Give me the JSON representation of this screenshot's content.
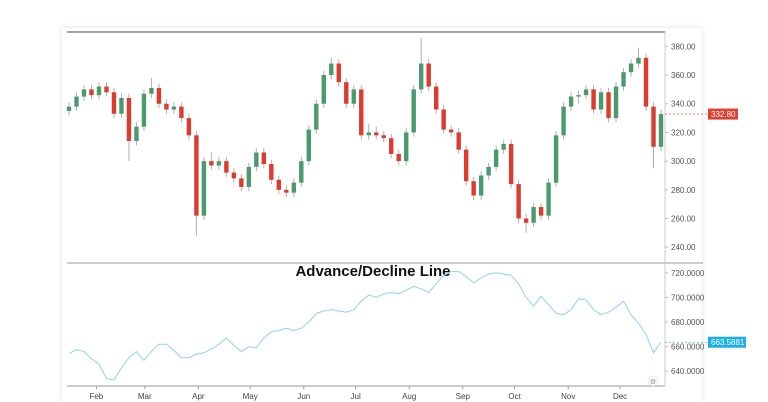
{
  "chart_data": [
    {
      "type": "candlestick",
      "title": "",
      "date_range": [
        "01-15",
        "12-27"
      ],
      "ylim": [
        229,
        390
      ],
      "yticks": [
        "380.00",
        "360.00",
        "340.00",
        "320.00",
        "300.00",
        "280.00",
        "260.00",
        "240.00"
      ],
      "ytick_values": [
        380,
        360,
        340,
        320,
        300,
        280,
        260,
        240
      ],
      "last_price_label": "332.80",
      "colors": {
        "up": "#4b9a6e",
        "down": "#dc3b2e",
        "wick": "#b0b0b0",
        "last_price": "#e0402f"
      },
      "candles_ohlc": [
        [
          335,
          341,
          332,
          338
        ],
        [
          338,
          348,
          335,
          345
        ],
        [
          345,
          353,
          342,
          350
        ],
        [
          350,
          353,
          343,
          346
        ],
        [
          346,
          355,
          343,
          352
        ],
        [
          352,
          355,
          345,
          348
        ],
        [
          348,
          351,
          330,
          333
        ],
        [
          333,
          347,
          330,
          344
        ],
        [
          344,
          347,
          300,
          314
        ],
        [
          314,
          327,
          311,
          324
        ],
        [
          324,
          350,
          321,
          347
        ],
        [
          347,
          358,
          344,
          351
        ],
        [
          351,
          354,
          337,
          340
        ],
        [
          340,
          343,
          333,
          336
        ],
        [
          336,
          341,
          333,
          338
        ],
        [
          338,
          341,
          327,
          330
        ],
        [
          330,
          333,
          315,
          318
        ],
        [
          318,
          321,
          248,
          262
        ],
        [
          262,
          303,
          259,
          300
        ],
        [
          300,
          306,
          294,
          297
        ],
        [
          297,
          303,
          294,
          300
        ],
        [
          300,
          303,
          289,
          292
        ],
        [
          292,
          295,
          285,
          288
        ],
        [
          288,
          291,
          279,
          282
        ],
        [
          282,
          299,
          279,
          296
        ],
        [
          296,
          309,
          293,
          306
        ],
        [
          306,
          309,
          295,
          298
        ],
        [
          298,
          301,
          284,
          287
        ],
        [
          287,
          290,
          277,
          280
        ],
        [
          280,
          283,
          275,
          278
        ],
        [
          278,
          288,
          275,
          285
        ],
        [
          285,
          303,
          282,
          300
        ],
        [
          300,
          325,
          297,
          322
        ],
        [
          322,
          343,
          319,
          340
        ],
        [
          340,
          363,
          337,
          360
        ],
        [
          360,
          372,
          357,
          368
        ],
        [
          368,
          371,
          352,
          355
        ],
        [
          355,
          358,
          337,
          340
        ],
        [
          340,
          353,
          337,
          350
        ],
        [
          350,
          353,
          315,
          318
        ],
        [
          318,
          326,
          315,
          320
        ],
        [
          320,
          324,
          315,
          318
        ],
        [
          318,
          321,
          313,
          316
        ],
        [
          316,
          319,
          302,
          305
        ],
        [
          305,
          308,
          297,
          300
        ],
        [
          300,
          323,
          297,
          320
        ],
        [
          320,
          353,
          317,
          350
        ],
        [
          350,
          386,
          347,
          368
        ],
        [
          368,
          371,
          349,
          352
        ],
        [
          352,
          355,
          333,
          336
        ],
        [
          336,
          339,
          319,
          322
        ],
        [
          322,
          325,
          317,
          320
        ],
        [
          320,
          323,
          305,
          308
        ],
        [
          308,
          311,
          283,
          286
        ],
        [
          286,
          289,
          273,
          276
        ],
        [
          276,
          293,
          273,
          290
        ],
        [
          290,
          299,
          287,
          296
        ],
        [
          296,
          311,
          293,
          308
        ],
        [
          308,
          315,
          305,
          312
        ],
        [
          312,
          315,
          281,
          284
        ],
        [
          284,
          287,
          257,
          260
        ],
        [
          260,
          263,
          250,
          257
        ],
        [
          257,
          271,
          254,
          268
        ],
        [
          268,
          271,
          259,
          262
        ],
        [
          262,
          288,
          259,
          285
        ],
        [
          285,
          321,
          282,
          318
        ],
        [
          318,
          341,
          315,
          338
        ],
        [
          338,
          348,
          335,
          345
        ],
        [
          345,
          349,
          340,
          346
        ],
        [
          346,
          353,
          343,
          350
        ],
        [
          350,
          353,
          333,
          336
        ],
        [
          336,
          351,
          333,
          348
        ],
        [
          348,
          351,
          327,
          330
        ],
        [
          330,
          355,
          327,
          352
        ],
        [
          352,
          365,
          349,
          362
        ],
        [
          362,
          371,
          359,
          368
        ],
        [
          368,
          379,
          365,
          372
        ],
        [
          372,
          375,
          335,
          338
        ],
        [
          338,
          341,
          295,
          310
        ],
        [
          310,
          336,
          307,
          332.8
        ]
      ]
    },
    {
      "type": "line",
      "title": "Advance/Decline Line",
      "date_range": [
        "01-15",
        "12-27"
      ],
      "ylim": [
        628,
        728
      ],
      "yticks": [
        "720.0000",
        "700.0000",
        "680.0000",
        "660.0000",
        "640.0000"
      ],
      "ytick_values": [
        720,
        700,
        680,
        660,
        640
      ],
      "last_value_label": "663.5881",
      "colors": {
        "line": "#8fd3f2",
        "last_value": "#1ab0e6"
      },
      "values": [
        654.5,
        657.5,
        656,
        650,
        646,
        634,
        633,
        643,
        651,
        656,
        649,
        656,
        662,
        662,
        657,
        651,
        651,
        654,
        655,
        658,
        662,
        667,
        661,
        656,
        660,
        659,
        667,
        672,
        673,
        675,
        673,
        675,
        680,
        687,
        689,
        690,
        689,
        688,
        690,
        697,
        702,
        700,
        703,
        704,
        703,
        706,
        709,
        707,
        704,
        711,
        718,
        721,
        721,
        717,
        712,
        716,
        719,
        720,
        719,
        718,
        711,
        700,
        693,
        701,
        694,
        687,
        686,
        690,
        699,
        698,
        690,
        686,
        688,
        692,
        697,
        686,
        679,
        670,
        655,
        663.5881
      ]
    }
  ],
  "x_axis": {
    "months": [
      {
        "label": "Feb",
        "date": "02-01"
      },
      {
        "label": "Mar",
        "date": "03-01"
      },
      {
        "label": "Apr",
        "date": "04-01"
      },
      {
        "label": "May",
        "date": "05-01"
      },
      {
        "label": "Jun",
        "date": "06-01"
      },
      {
        "label": "Jul",
        "date": "07-01"
      },
      {
        "label": "Aug",
        "date": "08-01"
      },
      {
        "label": "Sep",
        "date": "09-01"
      },
      {
        "label": "Oct",
        "date": "10-01"
      },
      {
        "label": "Nov",
        "date": "11-01"
      },
      {
        "label": "Dec",
        "date": "12-01"
      }
    ]
  },
  "icons": {
    "settings": "gear-icon"
  }
}
